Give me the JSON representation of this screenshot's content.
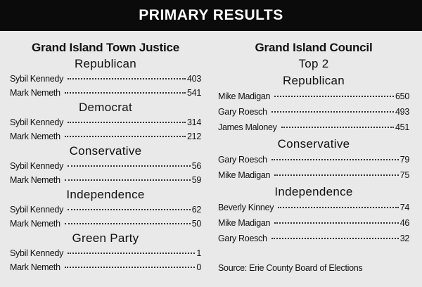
{
  "header": {
    "title": "PRIMARY RESULTS"
  },
  "columns": [
    {
      "title": "Grand Island Town Justice",
      "sections": [
        {
          "party": "Republican",
          "rows": [
            {
              "name": "Sybil Kennedy",
              "votes": 403
            },
            {
              "name": "Mark Nemeth",
              "votes": 541
            }
          ]
        },
        {
          "party": "Democrat",
          "rows": [
            {
              "name": "Sybil Kennedy",
              "votes": 314
            },
            {
              "name": "Mark Nemeth",
              "votes": 212
            }
          ]
        },
        {
          "party": "Conservative",
          "rows": [
            {
              "name": "Sybil Kennedy",
              "votes": 56
            },
            {
              "name": "Mark Nemeth",
              "votes": 59
            }
          ]
        },
        {
          "party": "Independence",
          "rows": [
            {
              "name": "Sybil Kennedy",
              "votes": 62
            },
            {
              "name": "Mark Nemeth",
              "votes": 50
            }
          ]
        },
        {
          "party": "Green Party",
          "rows": [
            {
              "name": "Sybil Kennedy",
              "votes": 1
            },
            {
              "name": "Mark Nemeth",
              "votes": 0
            }
          ]
        }
      ]
    },
    {
      "title": "Grand Island Council",
      "subtitle": "Top 2",
      "sections": [
        {
          "party": "Republican",
          "rows": [
            {
              "name": "Mike Madigan",
              "votes": 650
            },
            {
              "name": "Gary Roesch",
              "votes": 493
            },
            {
              "name": "James Maloney",
              "votes": 451
            }
          ]
        },
        {
          "party": "Conservative",
          "rows": [
            {
              "name": "Gary Roesch",
              "votes": 79
            },
            {
              "name": "Mike Madigan",
              "votes": 75
            }
          ]
        },
        {
          "party": "Independence",
          "rows": [
            {
              "name": "Beverly Kinney",
              "votes": 74
            },
            {
              "name": "Mike Madigan",
              "votes": 46
            },
            {
              "name": "Gary Roesch",
              "votes": 32
            }
          ]
        }
      ]
    }
  ],
  "source": "Source: Erie County Board of Elections"
}
